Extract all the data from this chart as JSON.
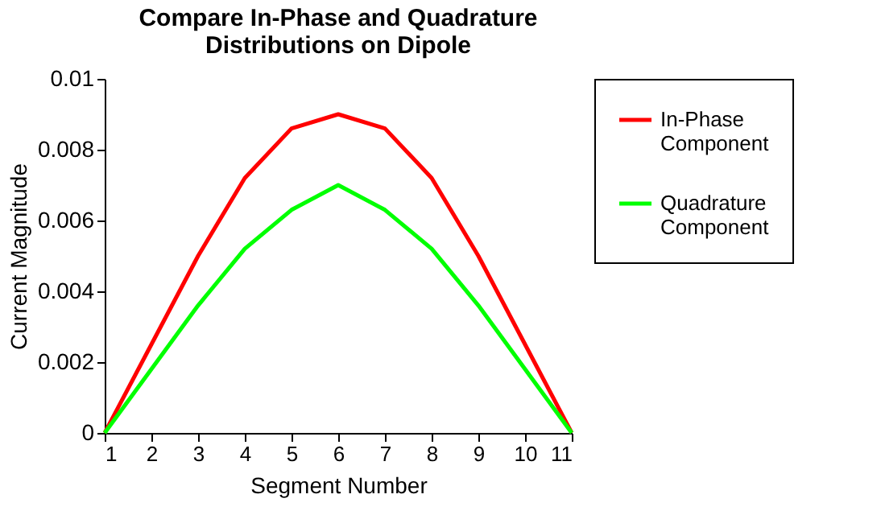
{
  "chart_data": {
    "type": "line",
    "title": "Compare In-Phase and Quadrature Distributions on Dipole",
    "xlabel": "Segment Number",
    "ylabel": "Current Magnitude",
    "x": [
      1,
      2,
      3,
      4,
      5,
      6,
      7,
      8,
      9,
      10,
      11
    ],
    "series": [
      {
        "name": "In-Phase Component",
        "color": "#ff0000",
        "values": [
          0,
          0.0025,
          0.005,
          0.0072,
          0.0086,
          0.009,
          0.0086,
          0.0072,
          0.005,
          0.0025,
          0
        ]
      },
      {
        "name": "Quadrature Component",
        "color": "#00ff00",
        "values": [
          0,
          0.0018,
          0.0036,
          0.0052,
          0.0063,
          0.007,
          0.0063,
          0.0052,
          0.0036,
          0.0018,
          0
        ]
      }
    ],
    "xlim": [
      1,
      11
    ],
    "xticks": [
      1,
      2,
      3,
      4,
      5,
      6,
      7,
      8,
      9,
      10,
      11
    ],
    "ylim": [
      0,
      0.01
    ],
    "yticks": [
      0,
      0.002,
      0.004,
      0.006,
      0.008,
      0.01
    ],
    "grid": false,
    "legend": "right",
    "marker": "none",
    "line_style": "solid"
  }
}
